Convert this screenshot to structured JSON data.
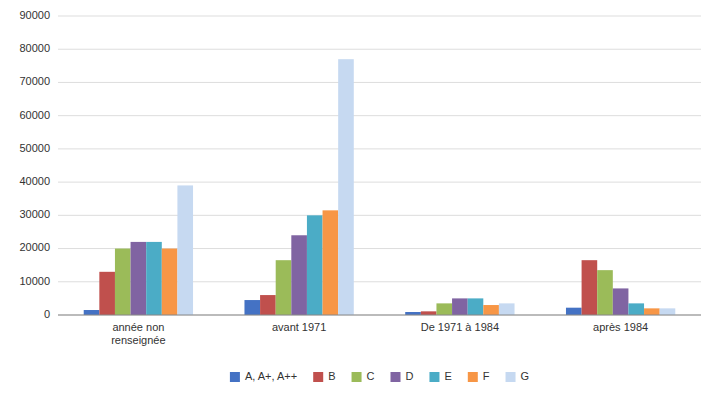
{
  "chart_data": {
    "type": "bar",
    "categories": [
      "année non\nrenseignée",
      "avant 1971",
      "De 1971 à 1984",
      "après 1984"
    ],
    "series": [
      {
        "name": "A, A+, A++",
        "color": "#4472C4",
        "values": [
          1500,
          4500,
          900,
          2200
        ]
      },
      {
        "name": "B",
        "color": "#C0504D",
        "values": [
          13000,
          6000,
          1100,
          16500
        ]
      },
      {
        "name": "C",
        "color": "#9BBB59",
        "values": [
          20000,
          16500,
          3500,
          13500
        ]
      },
      {
        "name": "D",
        "color": "#8064A2",
        "values": [
          22000,
          24000,
          5000,
          8000
        ]
      },
      {
        "name": "E",
        "color": "#4BACC6",
        "values": [
          22000,
          30000,
          5000,
          3500
        ]
      },
      {
        "name": "F",
        "color": "#F79646",
        "values": [
          20000,
          31500,
          3000,
          2000
        ]
      },
      {
        "name": "G",
        "color": "#C6D9F1",
        "values": [
          39000,
          77000,
          3500,
          2000
        ]
      }
    ],
    "ylim": [
      0,
      90000
    ],
    "yticks": [
      0,
      10000,
      20000,
      30000,
      40000,
      50000,
      60000,
      70000,
      80000,
      90000
    ],
    "grid": true,
    "legend": "bottom"
  }
}
